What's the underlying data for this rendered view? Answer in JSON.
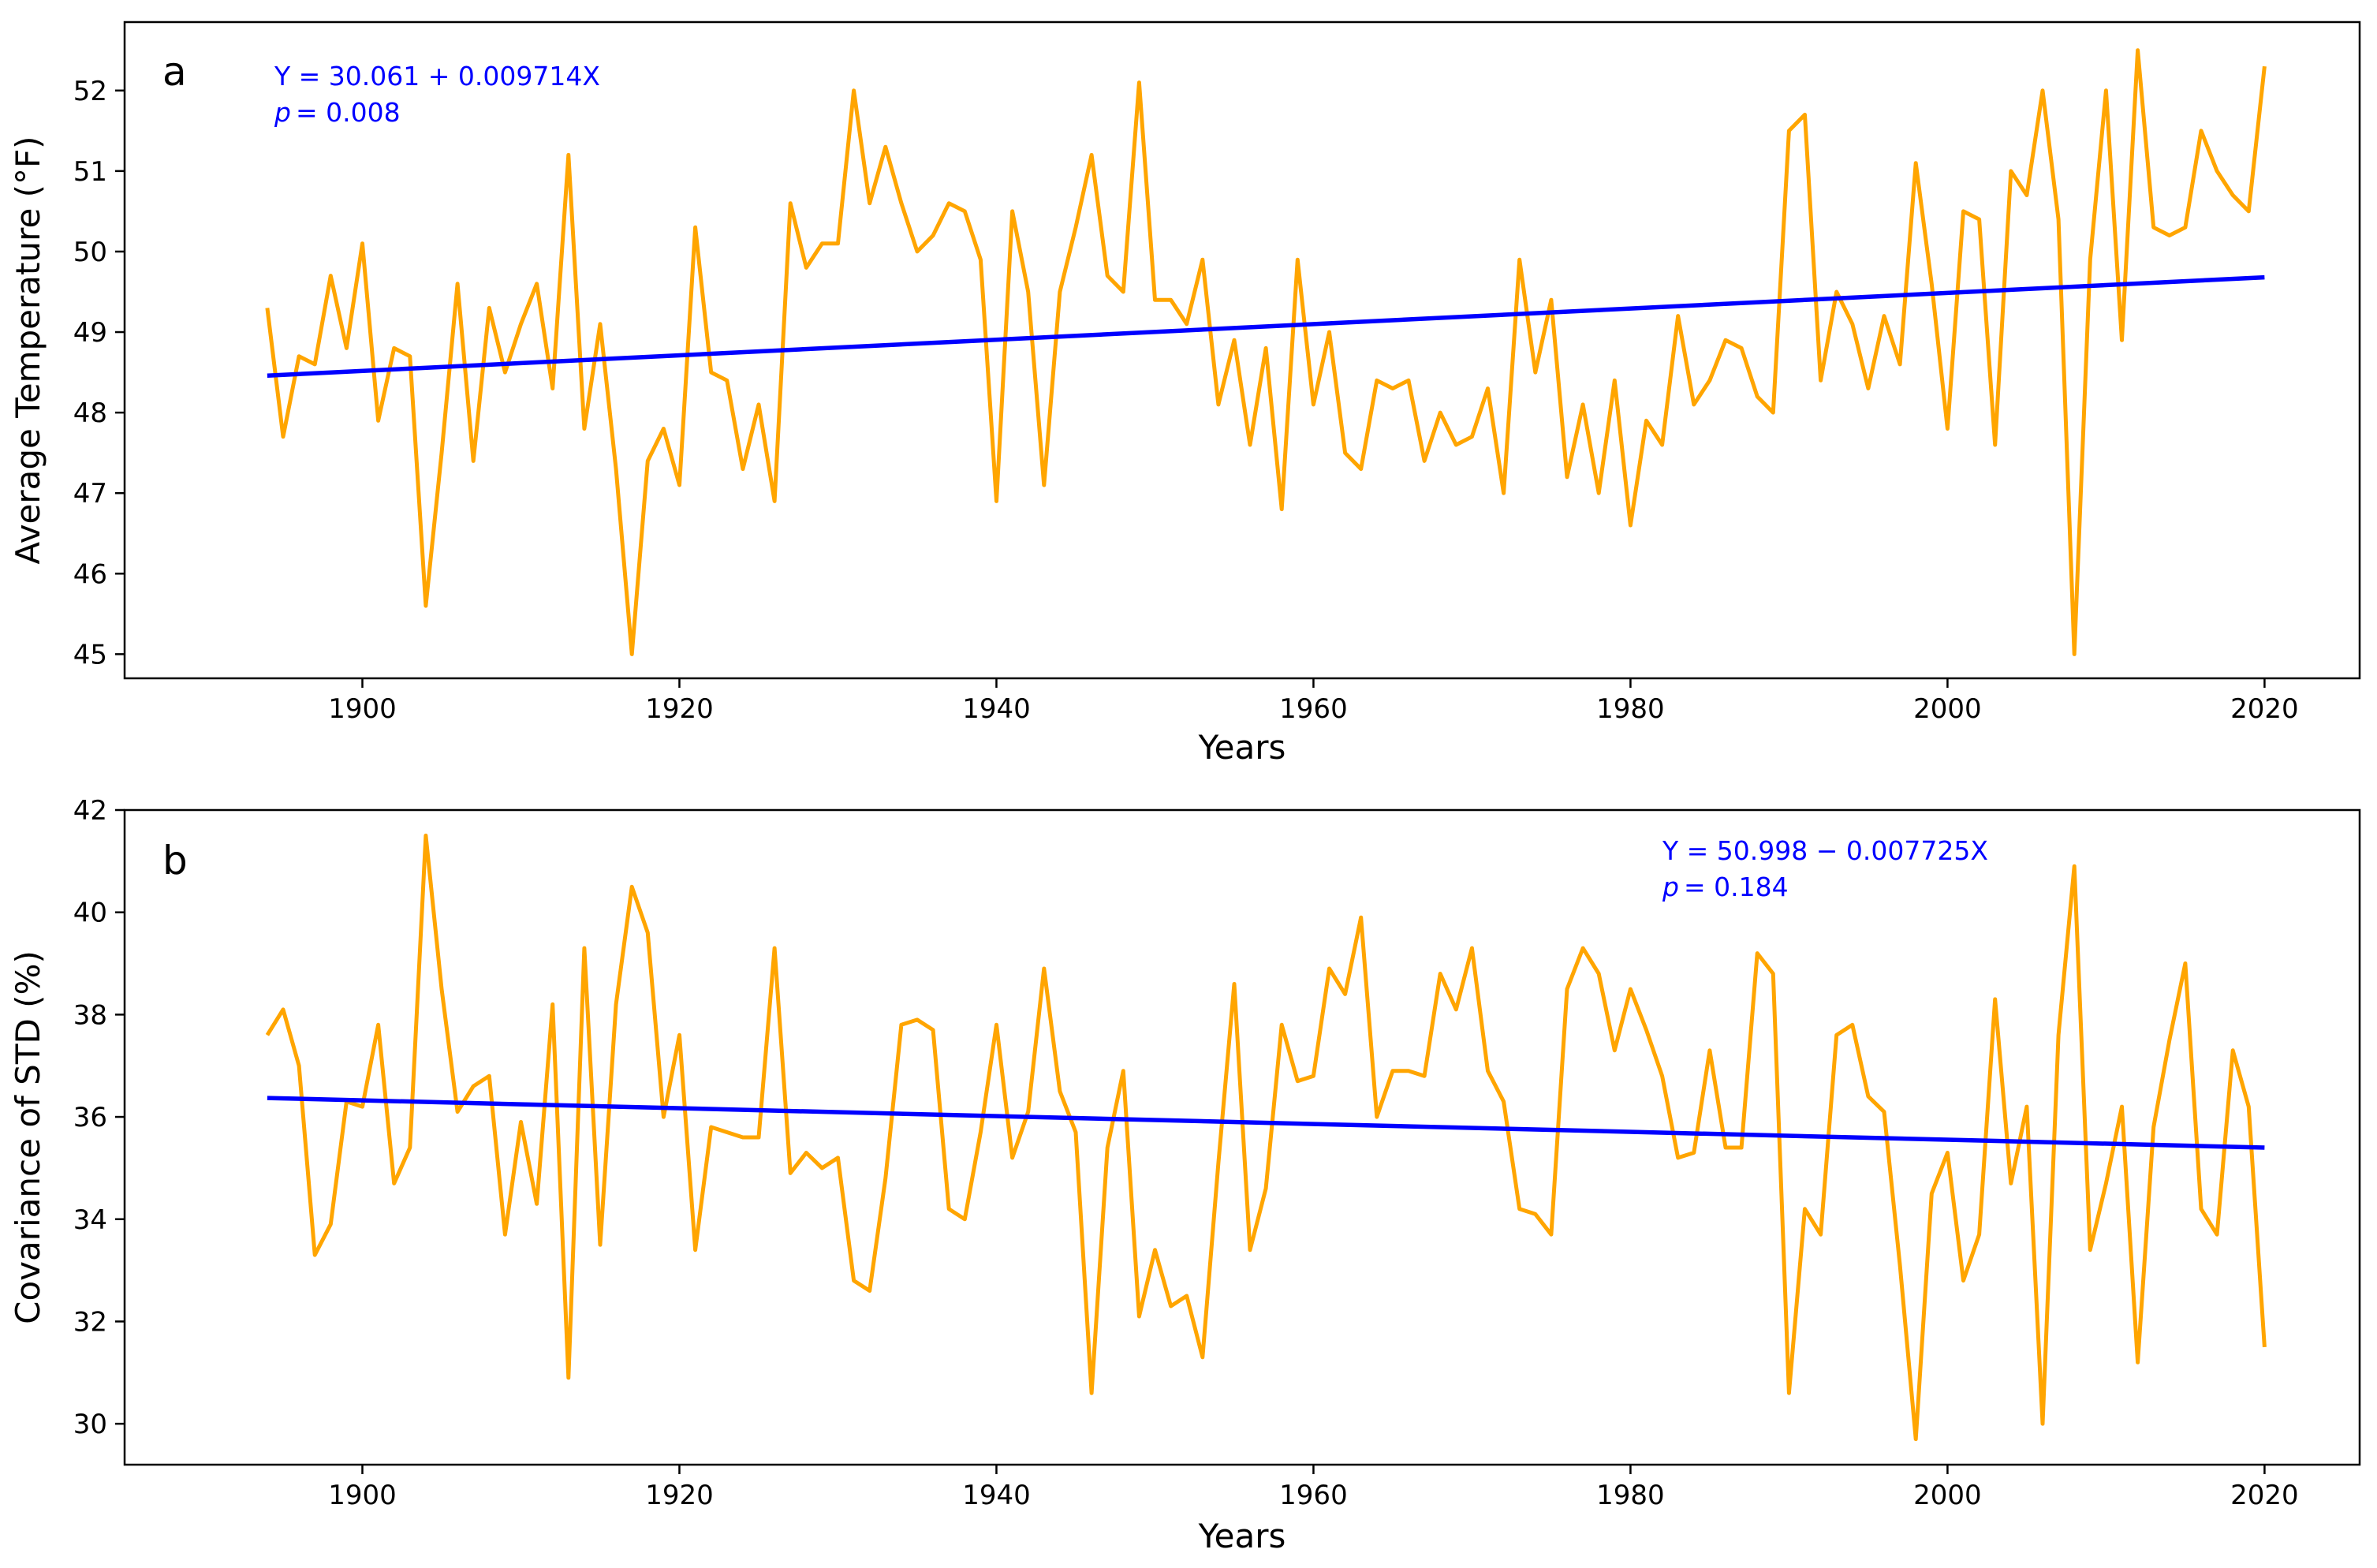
{
  "colors": {
    "data_line": "#FFA500",
    "trend_line": "#0000FF",
    "axes": "#000000",
    "background": "#FFFFFF"
  },
  "chart_data": [
    {
      "type": "line",
      "panel_label": "a",
      "title": "",
      "xlabel": "Years",
      "ylabel": "Average Temperature (°F)",
      "xlim": [
        1885,
        2026
      ],
      "ylim": [
        44.7,
        52.85
      ],
      "xticks": [
        1900,
        1920,
        1940,
        1960,
        1980,
        2000,
        2020
      ],
      "yticks": [
        45,
        46,
        47,
        48,
        49,
        50,
        51,
        52
      ],
      "grid": false,
      "equation": "Y = 30.061 + 0.009714X",
      "p_label": "p",
      "p_value": "= 0.008",
      "annotation_position": "top-left",
      "series": [
        {
          "name": "Average Temperature",
          "color": "#FFA500",
          "x_start": 1894,
          "values": [
            49.3,
            47.7,
            48.7,
            48.6,
            49.7,
            48.8,
            50.1,
            47.9,
            48.8,
            48.7,
            45.6,
            47.5,
            49.6,
            47.4,
            49.3,
            48.5,
            49.1,
            49.6,
            48.3,
            51.2,
            47.8,
            49.1,
            47.3,
            45.0,
            47.4,
            47.8,
            47.1,
            50.3,
            48.5,
            48.4,
            47.3,
            48.1,
            46.9,
            50.6,
            49.8,
            50.1,
            50.1,
            52.0,
            50.6,
            51.3,
            50.6,
            50.0,
            50.2,
            50.6,
            50.5,
            49.9,
            46.9,
            50.5,
            49.5,
            47.1,
            49.5,
            50.3,
            51.2,
            49.7,
            49.5,
            52.1,
            49.4,
            49.4,
            49.1,
            49.9,
            48.1,
            48.9,
            47.6,
            48.8,
            46.8,
            49.9,
            48.1,
            49.0,
            47.5,
            47.3,
            48.4,
            48.3,
            48.4,
            47.4,
            48.0,
            47.6,
            47.7,
            48.3,
            47.0,
            49.9,
            48.5,
            49.4,
            47.2,
            48.1,
            47.0,
            48.4,
            46.6,
            47.9,
            47.6,
            49.2,
            48.1,
            48.4,
            48.9,
            48.8,
            48.2,
            48.0,
            51.5,
            51.7,
            48.4,
            49.5,
            49.1,
            48.3,
            49.2,
            48.6,
            51.1,
            49.6,
            47.8,
            50.5,
            50.4,
            47.6,
            51.0,
            50.7,
            52.0,
            50.4,
            45.0,
            49.9,
            52.0,
            48.9,
            52.5,
            50.3,
            50.2,
            50.3,
            51.5,
            51.0,
            50.7,
            50.5,
            52.3
          ]
        },
        {
          "name": "Linear trend",
          "color": "#0000FF",
          "x": [
            1894,
            2020
          ],
          "y": [
            48.46,
            49.68
          ]
        }
      ]
    },
    {
      "type": "line",
      "panel_label": "b",
      "title": "",
      "xlabel": "Years",
      "ylabel": "Covariance of STD (%)",
      "xlim": [
        1885,
        2026
      ],
      "ylim": [
        29.2,
        42.0
      ],
      "xticks": [
        1900,
        1920,
        1940,
        1960,
        1980,
        2000,
        2020
      ],
      "yticks": [
        30,
        32,
        34,
        36,
        38,
        40,
        42
      ],
      "grid": false,
      "equation": "Y = 50.998 − 0.007725X",
      "p_label": "p",
      "p_value": "= 0.184",
      "annotation_position": "top-right",
      "series": [
        {
          "name": "Covariance of STD",
          "color": "#FFA500",
          "x_start": 1894,
          "values": [
            37.6,
            38.1,
            37.0,
            33.3,
            33.9,
            36.3,
            36.2,
            37.8,
            34.7,
            35.4,
            41.5,
            38.5,
            36.1,
            36.6,
            36.8,
            33.7,
            35.9,
            34.3,
            38.2,
            30.9,
            39.3,
            33.5,
            38.2,
            40.5,
            39.6,
            36.0,
            37.6,
            33.4,
            35.8,
            35.7,
            35.6,
            35.6,
            39.3,
            34.9,
            35.3,
            35.0,
            35.2,
            32.8,
            32.6,
            34.8,
            37.8,
            37.9,
            37.7,
            34.2,
            34.0,
            35.7,
            37.8,
            35.2,
            36.1,
            38.9,
            36.5,
            35.7,
            30.6,
            35.4,
            36.9,
            32.1,
            33.4,
            32.3,
            32.5,
            31.3,
            35.1,
            38.6,
            33.4,
            34.6,
            37.8,
            36.7,
            36.8,
            38.9,
            38.4,
            39.9,
            36.0,
            36.9,
            36.9,
            36.8,
            38.8,
            38.1,
            39.3,
            36.9,
            36.3,
            34.2,
            34.1,
            33.7,
            38.5,
            39.3,
            38.8,
            37.3,
            38.5,
            37.7,
            36.8,
            35.2,
            35.3,
            37.3,
            35.4,
            35.4,
            39.2,
            38.8,
            30.6,
            34.2,
            33.7,
            37.6,
            37.8,
            36.4,
            36.1,
            33.1,
            29.7,
            34.5,
            35.3,
            32.8,
            33.7,
            38.3,
            34.7,
            36.2,
            30.0,
            37.6,
            40.9,
            33.4,
            34.7,
            36.2,
            31.2,
            35.8,
            37.5,
            39.0,
            34.2,
            33.7,
            37.3,
            36.2,
            31.5
          ]
        },
        {
          "name": "Linear trend",
          "color": "#0000FF",
          "x": [
            1894,
            2020
          ],
          "y": [
            36.37,
            35.4
          ]
        }
      ]
    }
  ]
}
